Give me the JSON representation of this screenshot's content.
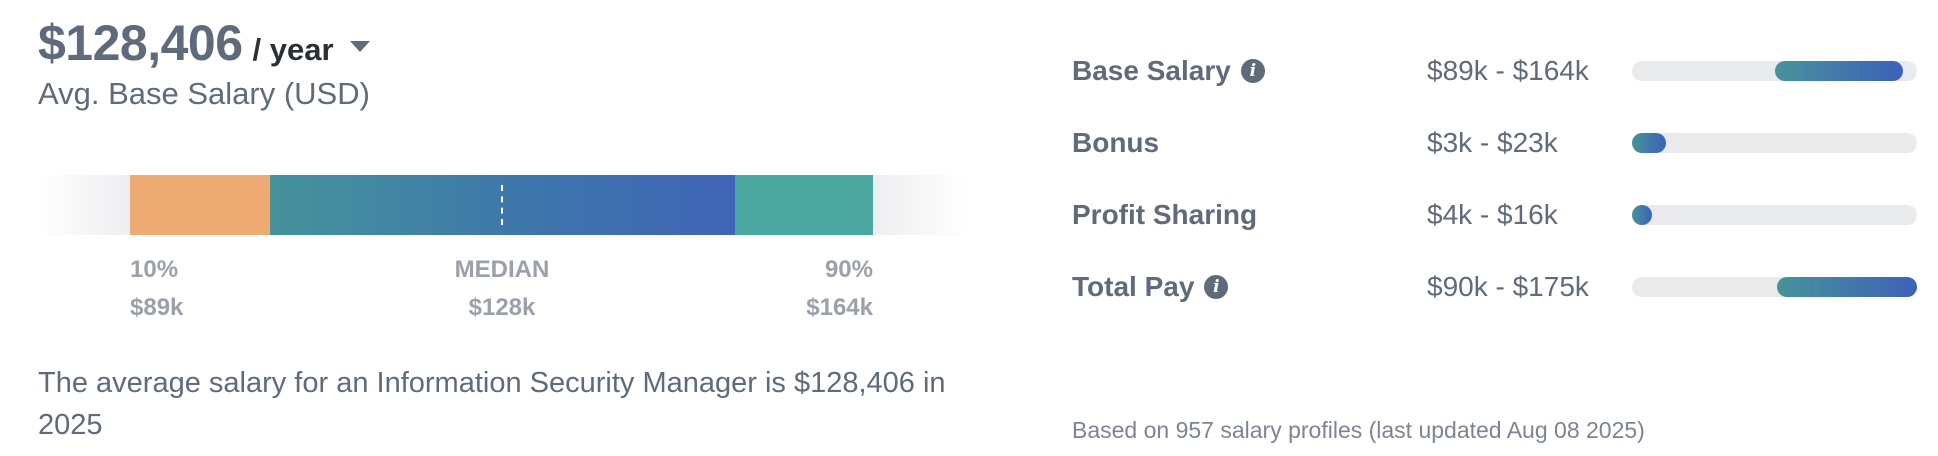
{
  "headline": {
    "amount": "$128,406",
    "period": "/ year",
    "subtitle": "Avg. Base Salary (USD)"
  },
  "range": {
    "low_pct": "10%",
    "low_val": "$89k",
    "median_label": "MEDIAN",
    "median_val": "$128k",
    "high_pct": "90%",
    "high_val": "$164k"
  },
  "summary": "The average salary for an Information Security Manager is $128,406 in 2025",
  "compensation": [
    {
      "label": "Base Salary",
      "range": "$89k - $164k",
      "info": true,
      "fill_start": 0.5,
      "fill_end": 0.95
    },
    {
      "label": "Bonus",
      "range": "$3k - $23k",
      "info": false,
      "fill_start": 0.0,
      "fill_end": 0.12
    },
    {
      "label": "Profit Sharing",
      "range": "$4k - $16k",
      "info": false,
      "fill_start": 0.0,
      "fill_end": 0.07
    },
    {
      "label": "Total Pay",
      "range": "$90k - $175k",
      "info": true,
      "fill_start": 0.51,
      "fill_end": 1.0
    }
  ],
  "footnote": "Based on 957 salary profiles (last updated Aug 08 2025)",
  "colors": {
    "low_segment": "#eeac74",
    "mid_segment_start": "#46929c",
    "mid_segment_end": "#4064b6",
    "high_segment": "#4aa8a1",
    "track": "#e9eaec"
  }
}
